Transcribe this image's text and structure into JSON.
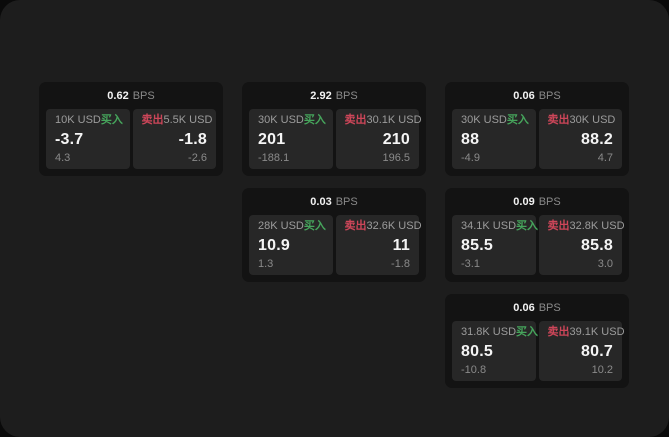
{
  "labels": {
    "buy": "买入",
    "sell": "卖出",
    "bps": "BPS"
  },
  "colors": {
    "buy_green": "#46a55c",
    "sell_red": "#cd4659",
    "panel_bg": "#1d1d1d",
    "card_bg": "#131313",
    "pane_bg": "#272727"
  },
  "cards": [
    {
      "row": 1,
      "col": 1,
      "bps": "0.62",
      "buy": {
        "amount": "10K USD",
        "price": "-3.7",
        "delta": "4.3"
      },
      "sell": {
        "amount": "5.5K USD",
        "price": "-1.8",
        "delta": "-2.6"
      }
    },
    {
      "row": 1,
      "col": 2,
      "bps": "2.92",
      "buy": {
        "amount": "30K USD",
        "price": "201",
        "delta": "-188.1"
      },
      "sell": {
        "amount": "30.1K USD",
        "price": "210",
        "delta": "196.5"
      }
    },
    {
      "row": 1,
      "col": 3,
      "bps": "0.06",
      "buy": {
        "amount": "30K USD",
        "price": "88",
        "delta": "-4.9"
      },
      "sell": {
        "amount": "30K USD",
        "price": "88.2",
        "delta": "4.7"
      }
    },
    {
      "row": 2,
      "col": 2,
      "bps": "0.03",
      "buy": {
        "amount": "28K USD",
        "price": "10.9",
        "delta": "1.3"
      },
      "sell": {
        "amount": "32.6K USD",
        "price": "11",
        "delta": "-1.8"
      }
    },
    {
      "row": 2,
      "col": 3,
      "bps": "0.09",
      "buy": {
        "amount": "34.1K USD",
        "price": "85.5",
        "delta": "-3.1"
      },
      "sell": {
        "amount": "32.8K USD",
        "price": "85.8",
        "delta": "3.0"
      }
    },
    {
      "row": 3,
      "col": 3,
      "bps": "0.06",
      "buy": {
        "amount": "31.8K USD",
        "price": "80.5",
        "delta": "-10.8"
      },
      "sell": {
        "amount": "39.1K USD",
        "price": "80.7",
        "delta": "10.2"
      }
    }
  ]
}
